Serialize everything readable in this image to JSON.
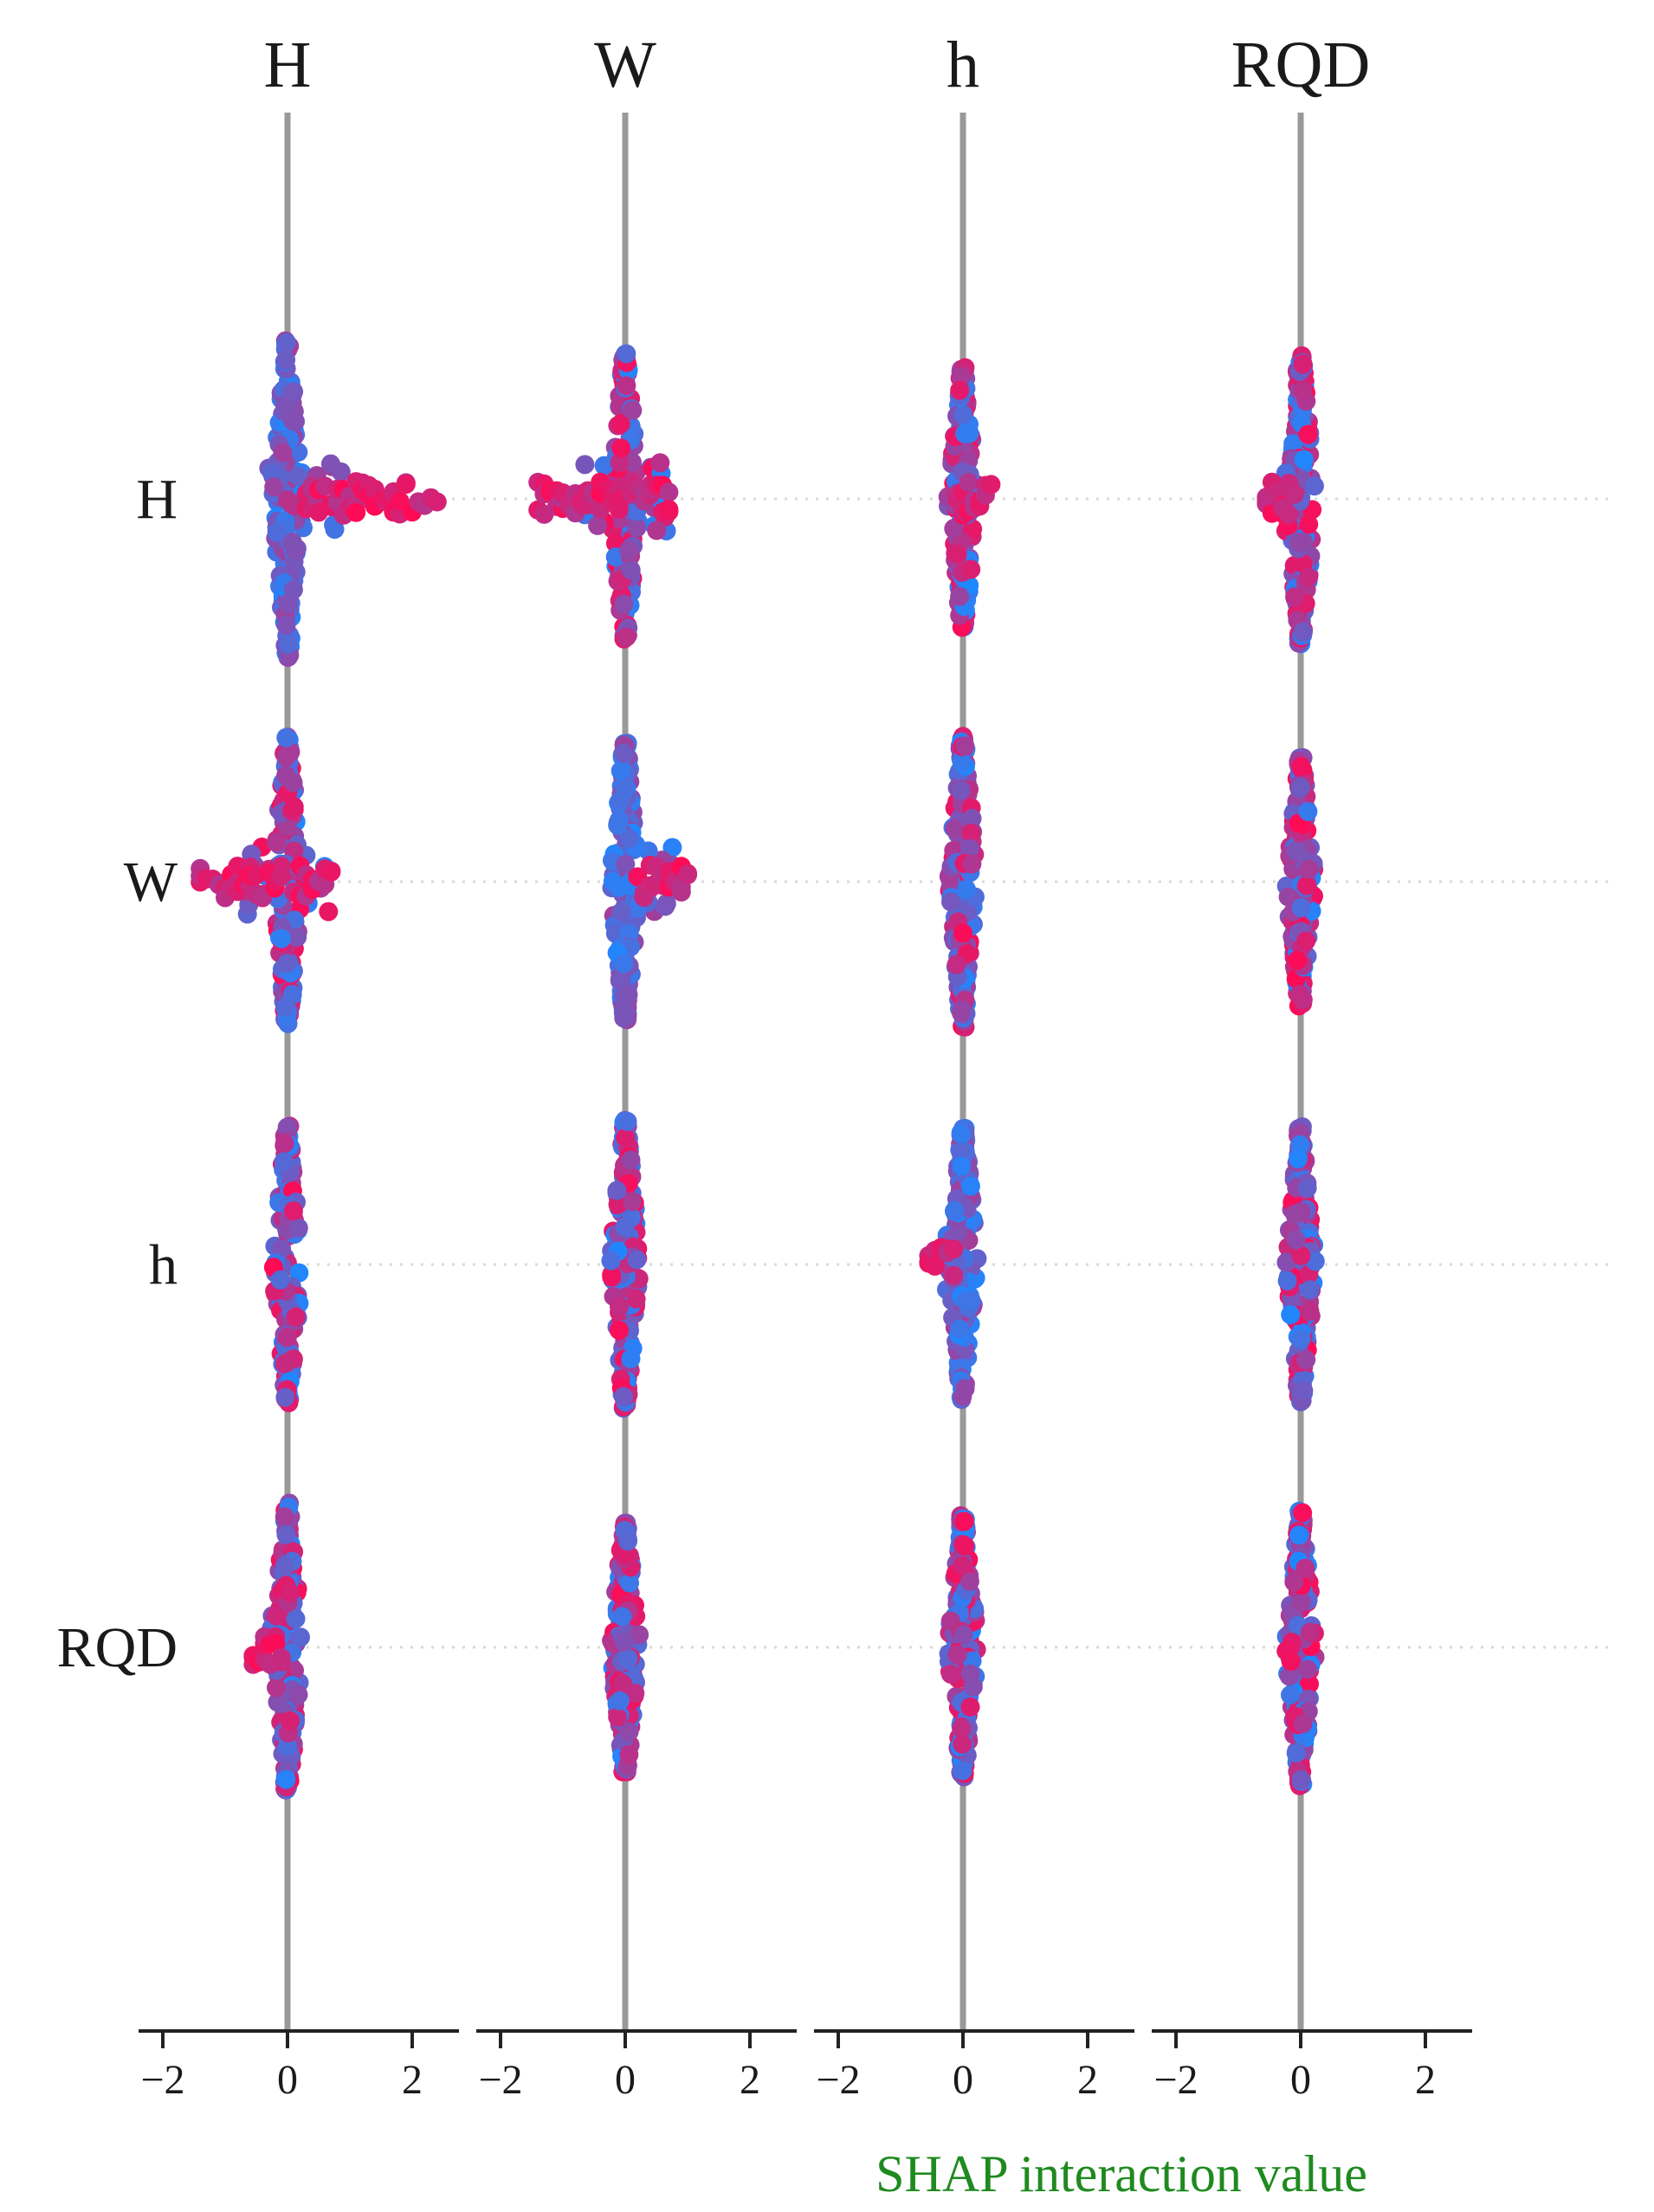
{
  "chart_data": {
    "type": "scatter",
    "subtype": "shap_interaction_summary_beeswarm",
    "features": [
      "H",
      "W",
      "h",
      "RQD"
    ],
    "column_titles": [
      "H",
      "W",
      "h",
      "RQD"
    ],
    "row_labels": [
      "H",
      "W",
      "h",
      "RQD"
    ],
    "xlabel": "SHAP interaction value",
    "xlim": [
      -2.5,
      2.5
    ],
    "x_ticks": [
      -2,
      0,
      2
    ],
    "x_tick_labels": [
      "−2",
      "0",
      "2"
    ],
    "grid": false,
    "zero_line": true,
    "colors": {
      "low_feature_value": "#1e88ff",
      "high_feature_value": "#ff0a55",
      "zero_line": "#999999",
      "row_guide": "#d9d9d9",
      "xlabel": "#1f8a1f"
    },
    "cells": [
      {
        "row": "H",
        "col": "H",
        "min": -0.65,
        "max": 2.4,
        "spread": 1.15,
        "tails": [
          {
            "from": 0.0,
            "to": 2.4,
            "color": "high"
          }
        ]
      },
      {
        "row": "H",
        "col": "W",
        "min": -1.4,
        "max": 0.7,
        "spread": 1.05,
        "tails": [
          {
            "from": -1.4,
            "to": -0.1,
            "color": "high"
          },
          {
            "from": 0.1,
            "to": 0.7,
            "color": "high"
          }
        ]
      },
      {
        "row": "H",
        "col": "h",
        "min": -0.3,
        "max": 0.45,
        "spread": 0.95,
        "tails": [
          {
            "from": 0.0,
            "to": 0.45,
            "color": "high"
          }
        ]
      },
      {
        "row": "H",
        "col": "RQD",
        "min": -0.55,
        "max": 0.4,
        "spread": 1.05,
        "tails": [
          {
            "from": -0.55,
            "to": -0.1,
            "color": "high"
          }
        ]
      },
      {
        "row": "W",
        "col": "H",
        "min": -1.4,
        "max": 0.7,
        "spread": 1.05,
        "tails": [
          {
            "from": -1.4,
            "to": -0.1,
            "color": "high"
          },
          {
            "from": 0.1,
            "to": 0.7,
            "color": "high"
          }
        ]
      },
      {
        "row": "W",
        "col": "W",
        "min": -0.35,
        "max": 1.0,
        "spread": 1.0,
        "tails": [
          {
            "from": 0.2,
            "to": 1.0,
            "color": "high"
          }
        ]
      },
      {
        "row": "W",
        "col": "h",
        "min": -0.4,
        "max": 0.4,
        "spread": 1.05,
        "tails": []
      },
      {
        "row": "W",
        "col": "RQD",
        "min": -0.35,
        "max": 0.3,
        "spread": 0.9,
        "tails": []
      },
      {
        "row": "h",
        "col": "H",
        "min": -0.35,
        "max": 0.45,
        "spread": 1.0,
        "tails": []
      },
      {
        "row": "h",
        "col": "W",
        "min": -0.35,
        "max": 0.4,
        "spread": 1.05,
        "tails": []
      },
      {
        "row": "h",
        "col": "h",
        "min": -0.55,
        "max": 0.5,
        "spread": 1.0,
        "tails": [
          {
            "from": -0.55,
            "to": -0.15,
            "color": "high"
          }
        ]
      },
      {
        "row": "h",
        "col": "RQD",
        "min": -0.3,
        "max": 0.3,
        "spread": 1.0,
        "tails": []
      },
      {
        "row": "RQD",
        "col": "H",
        "min": -0.55,
        "max": 0.4,
        "spread": 1.05,
        "tails": [
          {
            "from": -0.55,
            "to": -0.1,
            "color": "high"
          }
        ]
      },
      {
        "row": "RQD",
        "col": "W",
        "min": -0.35,
        "max": 0.3,
        "spread": 0.9,
        "tails": []
      },
      {
        "row": "RQD",
        "col": "h",
        "min": -0.3,
        "max": 0.3,
        "spread": 0.95,
        "tails": []
      },
      {
        "row": "RQD",
        "col": "RQD",
        "min": -0.3,
        "max": 0.45,
        "spread": 1.0,
        "tails": []
      }
    ]
  }
}
